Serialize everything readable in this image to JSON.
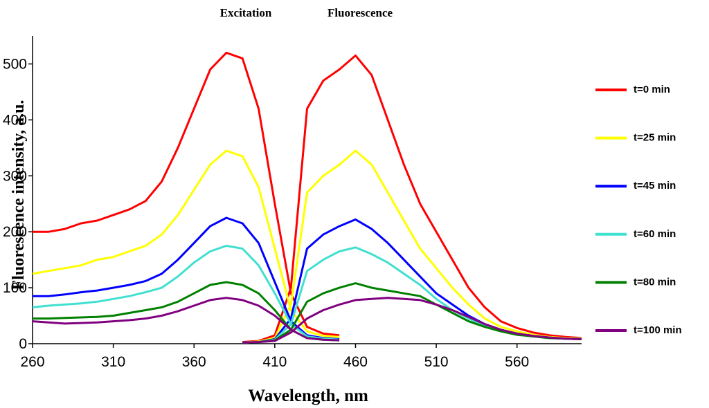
{
  "chart_data": {
    "type": "line",
    "annotations": [
      "Excitation",
      "Fluorescence"
    ],
    "x_label": "Wavelength, nm",
    "y_label": "Fluorescence intensity, a.u.",
    "xlim": [
      260,
      600
    ],
    "ylim": [
      0,
      550
    ],
    "xticks": [
      260,
      310,
      360,
      410,
      460,
      510,
      560
    ],
    "yticks": [
      0,
      100,
      200,
      300,
      400,
      500
    ],
    "series": [
      {
        "name": "t=0 min",
        "color": "#ff0000",
        "curves": [
          {
            "x": [
              260,
              270,
              280,
              290,
              300,
              310,
              320,
              330,
              340,
              350,
              360,
              370,
              380,
              390,
              400,
              410,
              420,
              430,
              440,
              450
            ],
            "values": [
              200,
              200,
              205,
              215,
              220,
              230,
              240,
              255,
              290,
              350,
              420,
              490,
              520,
              510,
              420,
              250,
              90,
              30,
              18,
              15
            ]
          },
          {
            "x": [
              390,
              400,
              410,
              420,
              430,
              440,
              450,
              460,
              470,
              480,
              490,
              500,
              510,
              520,
              530,
              540,
              550,
              560,
              570,
              580,
              590,
              600
            ],
            "values": [
              3,
              5,
              15,
              100,
              420,
              470,
              490,
              515,
              480,
              400,
              320,
              250,
              200,
              150,
              100,
              65,
              40,
              28,
              20,
              15,
              12,
              10
            ]
          }
        ]
      },
      {
        "name": "t=25 min",
        "color": "#ffff00",
        "curves": [
          {
            "x": [
              260,
              270,
              280,
              290,
              300,
              310,
              320,
              330,
              340,
              350,
              360,
              370,
              380,
              390,
              400,
              410,
              420,
              430,
              440,
              450
            ],
            "values": [
              125,
              130,
              135,
              140,
              150,
              155,
              165,
              175,
              195,
              230,
              275,
              320,
              345,
              335,
              280,
              170,
              60,
              22,
              14,
              12
            ]
          },
          {
            "x": [
              390,
              400,
              410,
              420,
              430,
              440,
              450,
              460,
              470,
              480,
              490,
              500,
              510,
              520,
              530,
              540,
              550,
              560,
              570,
              580,
              590,
              600
            ],
            "values": [
              2,
              4,
              10,
              70,
              270,
              300,
              320,
              345,
              320,
              270,
              220,
              170,
              135,
              100,
              70,
              45,
              30,
              22,
              16,
              12,
              10,
              9
            ]
          }
        ]
      },
      {
        "name": "t=45 min",
        "color": "#0000ff",
        "curves": [
          {
            "x": [
              260,
              270,
              280,
              290,
              300,
              310,
              320,
              330,
              340,
              350,
              360,
              370,
              380,
              390,
              400,
              410,
              420,
              430,
              440,
              450
            ],
            "values": [
              85,
              85,
              88,
              92,
              95,
              100,
              105,
              112,
              125,
              150,
              180,
              210,
              225,
              215,
              180,
              110,
              40,
              15,
              10,
              8
            ]
          },
          {
            "x": [
              390,
              400,
              410,
              420,
              430,
              440,
              450,
              460,
              470,
              480,
              490,
              500,
              510,
              520,
              530,
              540,
              550,
              560,
              570,
              580,
              590,
              600
            ],
            "values": [
              2,
              3,
              8,
              45,
              170,
              195,
              210,
              222,
              205,
              180,
              150,
              120,
              90,
              70,
              50,
              35,
              25,
              18,
              14,
              11,
              9,
              8
            ]
          }
        ]
      },
      {
        "name": "t=60 min",
        "color": "#40e0d0",
        "curves": [
          {
            "x": [
              260,
              270,
              280,
              290,
              300,
              310,
              320,
              330,
              340,
              350,
              360,
              370,
              380,
              390,
              400,
              410,
              420,
              430,
              440,
              450
            ],
            "values": [
              65,
              68,
              70,
              72,
              75,
              80,
              85,
              92,
              100,
              120,
              145,
              165,
              175,
              170,
              140,
              90,
              35,
              13,
              9,
              7
            ]
          },
          {
            "x": [
              390,
              400,
              410,
              420,
              430,
              440,
              450,
              460,
              470,
              480,
              490,
              500,
              510,
              520,
              530,
              540,
              550,
              560,
              570,
              580,
              590,
              600
            ],
            "values": [
              2,
              3,
              7,
              35,
              130,
              150,
              165,
              172,
              160,
              145,
              125,
              105,
              80,
              60,
              45,
              32,
              23,
              17,
              13,
              10,
              9,
              8
            ]
          }
        ]
      },
      {
        "name": "t=80 min",
        "color": "#008000",
        "curves": [
          {
            "x": [
              260,
              270,
              280,
              290,
              300,
              310,
              320,
              330,
              340,
              350,
              360,
              370,
              380,
              390,
              400,
              410,
              420,
              430,
              440,
              450
            ],
            "values": [
              45,
              45,
              46,
              47,
              48,
              50,
              55,
              60,
              65,
              75,
              90,
              105,
              110,
              105,
              90,
              60,
              25,
              10,
              7,
              6
            ]
          },
          {
            "x": [
              390,
              400,
              410,
              420,
              430,
              440,
              450,
              460,
              470,
              480,
              490,
              500,
              510,
              520,
              530,
              540,
              550,
              560,
              570,
              580,
              590,
              600
            ],
            "values": [
              2,
              3,
              6,
              25,
              75,
              90,
              100,
              108,
              100,
              95,
              90,
              85,
              70,
              55,
              40,
              30,
              22,
              16,
              13,
              10,
              9,
              8
            ]
          }
        ]
      },
      {
        "name": "t=100 min",
        "color": "#800080",
        "curves": [
          {
            "x": [
              260,
              270,
              280,
              290,
              300,
              310,
              320,
              330,
              340,
              350,
              360,
              370,
              380,
              390,
              400,
              410,
              420,
              430,
              440,
              450
            ],
            "values": [
              40,
              38,
              36,
              37,
              38,
              40,
              42,
              45,
              50,
              58,
              68,
              78,
              82,
              78,
              68,
              50,
              25,
              10,
              7,
              6
            ]
          },
          {
            "x": [
              390,
              400,
              410,
              420,
              430,
              440,
              450,
              460,
              470,
              480,
              490,
              500,
              510,
              520,
              530,
              540,
              550,
              560,
              570,
              580,
              590,
              600
            ],
            "values": [
              2,
              3,
              5,
              20,
              45,
              60,
              70,
              78,
              80,
              82,
              80,
              78,
              70,
              60,
              48,
              35,
              25,
              18,
              14,
              11,
              9,
              8
            ]
          }
        ]
      }
    ]
  }
}
